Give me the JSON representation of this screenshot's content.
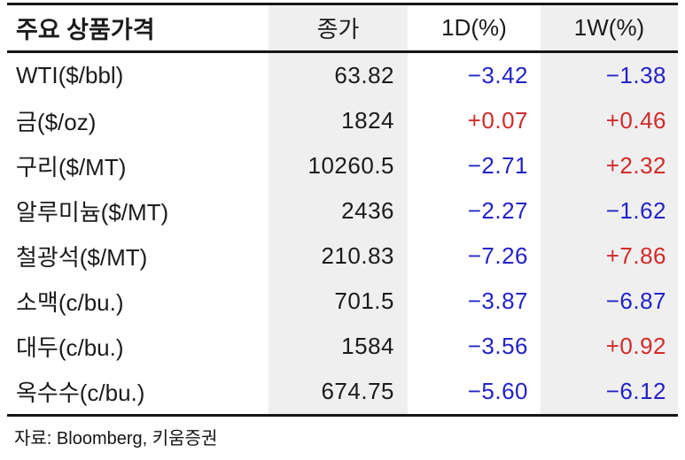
{
  "colors": {
    "positive": "#d22a2a",
    "negative": "#2323c8",
    "shade": "#efefef",
    "line": "#161616",
    "text": "#1b1b1b"
  },
  "chart_data": {
    "type": "table",
    "title": "주요 상품가격",
    "columns": [
      "주요 상품가격",
      "종가",
      "1D(%)",
      "1W(%)"
    ],
    "rows": [
      {
        "label": "WTI($/bbl)",
        "close": "63.82",
        "d1": "−3.42",
        "w1": "−1.38"
      },
      {
        "label": "금($/oz)",
        "close": "1824",
        "d1": "+0.07",
        "w1": "+0.46"
      },
      {
        "label": "구리($/MT)",
        "close": "10260.5",
        "d1": "−2.71",
        "w1": "+2.32"
      },
      {
        "label": "알루미늄($/MT)",
        "close": "2436",
        "d1": "−2.27",
        "w1": "−1.62"
      },
      {
        "label": "철광석($/MT)",
        "close": "210.83",
        "d1": "−7.26",
        "w1": "+7.86"
      },
      {
        "label": "소맥(c/bu.)",
        "close": "701.5",
        "d1": "−3.87",
        "w1": "−6.87"
      },
      {
        "label": "대두(c/bu.)",
        "close": "1584",
        "d1": "−3.56",
        "w1": "+0.92"
      },
      {
        "label": "옥수수(c/bu.)",
        "close": "674.75",
        "d1": "−5.60",
        "w1": "−6.12"
      }
    ]
  },
  "footer": {
    "source": "자료: Bloomberg,  키움증권"
  }
}
